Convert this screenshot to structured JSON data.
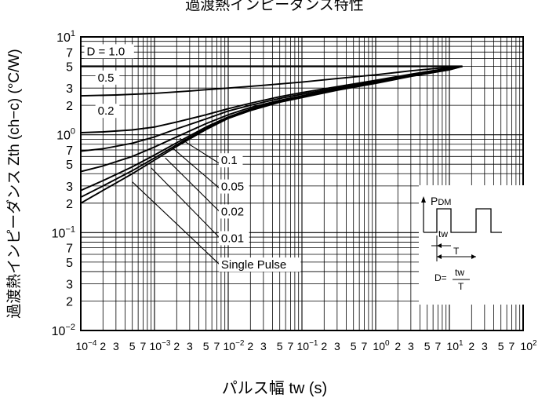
{
  "chart_data": {
    "type": "line",
    "title": "過渡熱インピーダンス特性",
    "xlabel": "パルス幅  tw (s)",
    "ylabel": "過渡熱インピーダンス   Zth (ch−c)  (°C/W)",
    "x_scale": "log",
    "y_scale": "log",
    "xlim": [
      0.0001,
      100
    ],
    "ylim": [
      0.01,
      10
    ],
    "grid": true,
    "x_ticks": [
      {
        "base": "10",
        "exp": "−4",
        "minor": [
          "2",
          "3",
          "5",
          "7"
        ]
      },
      {
        "base": "10",
        "exp": "−3",
        "minor": [
          "2",
          "3",
          "5",
          "7"
        ]
      },
      {
        "base": "10",
        "exp": "−2",
        "minor": [
          "2",
          "3",
          "5",
          "7"
        ]
      },
      {
        "base": "10",
        "exp": "−1",
        "minor": [
          "2",
          "3",
          "5",
          "7"
        ]
      },
      {
        "base": "10",
        "exp": "0",
        "minor": [
          "2",
          "3",
          "5",
          "7"
        ]
      },
      {
        "base": "10",
        "exp": "1",
        "minor": [
          "2",
          "3",
          "5",
          "7"
        ]
      },
      {
        "base": "10",
        "exp": "2",
        "minor": []
      }
    ],
    "y_ticks": [
      {
        "base": "10",
        "exp": "−2",
        "minor": [
          "2",
          "3",
          "5",
          "7"
        ]
      },
      {
        "base": "10",
        "exp": "−1",
        "minor": [
          "2",
          "3",
          "5",
          "7"
        ]
      },
      {
        "base": "10",
        "exp": "0",
        "minor": [
          "2",
          "3",
          "5",
          "7"
        ]
      },
      {
        "base": "10",
        "exp": "1",
        "minor": []
      }
    ],
    "series": [
      {
        "name": "D = 1.0",
        "x": [
          0.0001,
          15
        ],
        "y": [
          5.0,
          5.0
        ]
      },
      {
        "name": "0.5",
        "x": [
          0.0001,
          0.0003,
          0.001,
          0.003,
          0.01,
          0.03,
          0.1,
          0.3,
          1,
          3,
          10,
          15
        ],
        "y": [
          2.5,
          2.55,
          2.65,
          2.8,
          3.0,
          3.2,
          3.45,
          3.75,
          4.1,
          4.5,
          4.9,
          5.0
        ]
      },
      {
        "name": "0.2",
        "x": [
          0.0001,
          0.0002,
          0.0005,
          0.001,
          0.002,
          0.005,
          0.01,
          0.02,
          0.05,
          0.1,
          0.3,
          1,
          3,
          10,
          15
        ],
        "y": [
          1.05,
          1.07,
          1.12,
          1.2,
          1.35,
          1.6,
          1.85,
          2.1,
          2.45,
          2.7,
          3.1,
          3.6,
          4.15,
          4.8,
          5.0
        ]
      },
      {
        "name": "0.1",
        "x": [
          0.0001,
          0.0002,
          0.0005,
          0.001,
          0.002,
          0.005,
          0.01,
          0.02,
          0.05,
          0.1,
          0.3,
          1,
          3,
          10,
          15
        ],
        "y": [
          0.68,
          0.72,
          0.82,
          0.95,
          1.15,
          1.45,
          1.75,
          2.0,
          2.35,
          2.6,
          3.0,
          3.5,
          4.1,
          4.75,
          5.0
        ]
      },
      {
        "name": "0.05",
        "x": [
          0.0001,
          0.0002,
          0.0005,
          0.001,
          0.002,
          0.005,
          0.01,
          0.02,
          0.05,
          0.1,
          0.3,
          1,
          3,
          10,
          15
        ],
        "y": [
          0.42,
          0.48,
          0.6,
          0.75,
          0.95,
          1.3,
          1.6,
          1.9,
          2.25,
          2.5,
          2.95,
          3.45,
          4.05,
          4.7,
          5.0
        ]
      },
      {
        "name": "0.02",
        "x": [
          0.0001,
          0.0002,
          0.0005,
          0.001,
          0.002,
          0.005,
          0.01,
          0.02,
          0.05,
          0.1,
          0.3,
          1,
          3,
          10,
          15
        ],
        "y": [
          0.27,
          0.34,
          0.47,
          0.62,
          0.83,
          1.2,
          1.52,
          1.83,
          2.2,
          2.45,
          2.9,
          3.4,
          4.0,
          4.65,
          5.0
        ]
      },
      {
        "name": "0.01",
        "x": [
          0.0001,
          0.0002,
          0.0005,
          0.001,
          0.002,
          0.005,
          0.01,
          0.02,
          0.05,
          0.1,
          0.3,
          1,
          3,
          10,
          15
        ],
        "y": [
          0.23,
          0.3,
          0.43,
          0.58,
          0.79,
          1.16,
          1.5,
          1.8,
          2.18,
          2.42,
          2.88,
          3.38,
          3.98,
          4.62,
          5.0
        ]
      },
      {
        "name": "Single Pulse",
        "x": [
          0.0001,
          0.0002,
          0.0005,
          0.001,
          0.002,
          0.005,
          0.01,
          0.02,
          0.05,
          0.1,
          0.3,
          1,
          3,
          10,
          15
        ],
        "y": [
          0.2,
          0.27,
          0.4,
          0.55,
          0.76,
          1.13,
          1.47,
          1.77,
          2.15,
          2.4,
          2.85,
          3.35,
          3.95,
          4.6,
          5.0
        ]
      }
    ],
    "inset": {
      "pdm_main": "P",
      "pdm_sub": "DM",
      "tw": "tw",
      "T": "T",
      "d_prefix": "D=",
      "d_num": "tw",
      "d_den": "T"
    }
  }
}
